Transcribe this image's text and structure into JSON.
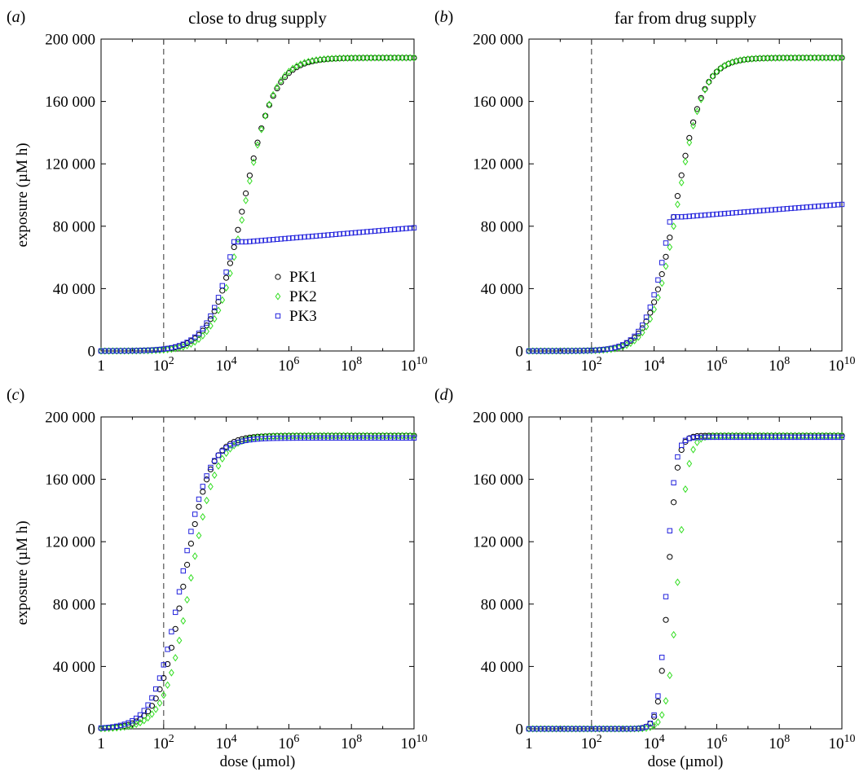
{
  "colors": {
    "PK1": "#000000",
    "PK2": "#33dd22",
    "PK3": "#2222dd"
  },
  "markers": {
    "PK1": "circle",
    "PK2": "diamond",
    "PK3": "square"
  },
  "legend": {
    "entries": [
      "PK1",
      "PK2",
      "PK3"
    ],
    "panel": "a"
  },
  "chart_data": [
    {
      "type": "scatter",
      "panel": "a",
      "letter": "a",
      "title": "close to drug supply",
      "xlabel": "",
      "ylabel": "exposure (µM h)",
      "xscale": "log",
      "xlim": [
        1,
        10000000000
      ],
      "ylim": [
        0,
        200000
      ],
      "xticks": [
        1,
        100,
        10000,
        1000000,
        100000000,
        10000000000
      ],
      "xtick_labels": [
        [
          "1",
          ""
        ],
        [
          "10",
          "2"
        ],
        [
          "10",
          "4"
        ],
        [
          "10",
          "6"
        ],
        [
          "10",
          "8"
        ],
        [
          "10",
          "10"
        ]
      ],
      "yticks": [
        0,
        40000,
        80000,
        120000,
        160000,
        200000
      ],
      "ytick_labels": [
        "0",
        "40 000",
        "80 000",
        "120 000",
        "160 000",
        "200 000"
      ],
      "ref_line_x": 100,
      "series": [
        {
          "name": "PK1",
          "curve": {
            "kind": "logistic",
            "ymax": 188000,
            "x50": 4.55,
            "k": 2.0
          }
        },
        {
          "name": "PK2",
          "curve": {
            "kind": "logistic",
            "ymax": 188000,
            "x50": 4.6,
            "k": 2.15
          }
        },
        {
          "name": "PK3",
          "curve": {
            "kind": "capped",
            "ymax": 188000,
            "x50": 4.5,
            "k": 2.0,
            "cap": 70000,
            "cap_start": 4.65,
            "end": 79000
          }
        }
      ]
    },
    {
      "type": "scatter",
      "panel": "b",
      "letter": "b",
      "title": "far from drug supply",
      "xlabel": "",
      "ylabel": "",
      "xscale": "log",
      "xlim": [
        1,
        10000000000
      ],
      "ylim": [
        0,
        200000
      ],
      "xticks": [
        1,
        100,
        10000,
        1000000,
        100000000,
        10000000000
      ],
      "xtick_labels": [
        [
          "1",
          ""
        ],
        [
          "10",
          "2"
        ],
        [
          "10",
          "4"
        ],
        [
          "10",
          "6"
        ],
        [
          "10",
          "8"
        ],
        [
          "10",
          "10"
        ]
      ],
      "yticks": [
        0,
        40000,
        80000,
        120000,
        160000,
        200000
      ],
      "ytick_labels": [
        "0",
        "40 000",
        "80 000",
        "120 000",
        "160 000",
        "200 000"
      ],
      "ref_line_x": 100,
      "series": [
        {
          "name": "PK1",
          "curve": {
            "kind": "logistic",
            "ymax": 188000,
            "x50": 4.7,
            "k": 2.3
          }
        },
        {
          "name": "PK2",
          "curve": {
            "kind": "logistic",
            "ymax": 188000,
            "x50": 4.75,
            "k": 2.4
          }
        },
        {
          "name": "PK3",
          "curve": {
            "kind": "capped",
            "ymax": 188000,
            "x50": 4.6,
            "k": 2.4,
            "cap": 86000,
            "cap_start": 4.9,
            "end": 94000
          }
        }
      ]
    },
    {
      "type": "scatter",
      "panel": "c",
      "letter": "c",
      "title": "",
      "xlabel": "dose (µmol)",
      "ylabel": "exposure (µM h)",
      "xscale": "log",
      "xlim": [
        1,
        10000000000
      ],
      "ylim": [
        0,
        200000
      ],
      "xticks": [
        1,
        100,
        10000,
        1000000,
        100000000,
        10000000000
      ],
      "xtick_labels": [
        [
          "1",
          ""
        ],
        [
          "10",
          "2"
        ],
        [
          "10",
          "4"
        ],
        [
          "10",
          "6"
        ],
        [
          "10",
          "8"
        ],
        [
          "10",
          "10"
        ]
      ],
      "yticks": [
        0,
        40000,
        80000,
        120000,
        160000,
        200000
      ],
      "ytick_labels": [
        "0",
        "40 000",
        "80 000",
        "120 000",
        "160 000",
        "200 000"
      ],
      "ref_line_x": 100,
      "series": [
        {
          "name": "PK1",
          "curve": {
            "kind": "logistic",
            "ymax": 188000,
            "x50": 2.65,
            "k": 2.4
          }
        },
        {
          "name": "PK2",
          "curve": {
            "kind": "logistic",
            "ymax": 188000,
            "x50": 2.85,
            "k": 2.4
          }
        },
        {
          "name": "PK3",
          "curve": {
            "kind": "logistic",
            "ymax": 186500,
            "x50": 2.55,
            "k": 2.3
          }
        }
      ]
    },
    {
      "type": "scatter",
      "panel": "d",
      "letter": "d",
      "title": "",
      "xlabel": "dose (µmol)",
      "ylabel": "",
      "xscale": "log",
      "xlim": [
        1,
        10000000000
      ],
      "ylim": [
        0,
        200000
      ],
      "xticks": [
        1,
        100,
        10000,
        1000000,
        100000000,
        10000000000
      ],
      "xtick_labels": [
        [
          "1",
          ""
        ],
        [
          "10",
          "2"
        ],
        [
          "10",
          "4"
        ],
        [
          "10",
          "6"
        ],
        [
          "10",
          "8"
        ],
        [
          "10",
          "10"
        ]
      ],
      "yticks": [
        0,
        40000,
        80000,
        120000,
        160000,
        200000
      ],
      "ytick_labels": [
        "0",
        "40 000",
        "80 000",
        "120 000",
        "160 000",
        "200 000"
      ],
      "ref_line_x": 100,
      "series": [
        {
          "name": "PK1",
          "curve": {
            "kind": "logistic",
            "ymax": 188000,
            "x50": 4.45,
            "k": 7.0
          }
        },
        {
          "name": "PK2",
          "curve": {
            "kind": "logistic",
            "ymax": 188000,
            "x50": 4.75,
            "k": 6.0
          }
        },
        {
          "name": "PK3",
          "curve": {
            "kind": "logistic",
            "ymax": 187000,
            "x50": 4.4,
            "k": 7.5
          }
        }
      ]
    }
  ]
}
